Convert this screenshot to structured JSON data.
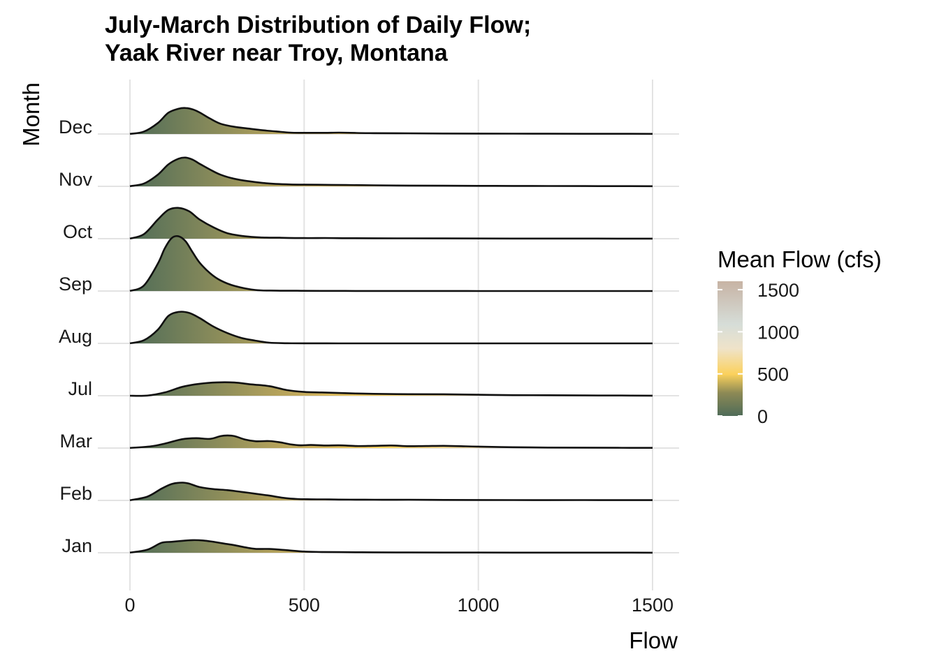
{
  "chart_data": {
    "type": "ridgeline",
    "title": [
      "July-March Distribution of Daily Flow;",
      "Yaak River near Troy, Montana"
    ],
    "xlabel": "Flow",
    "ylabel": "Month",
    "xlim": [
      0,
      1500
    ],
    "xticks": [
      "0",
      "500",
      "1000",
      "1500"
    ],
    "grid": true,
    "legend": {
      "title": "Mean Flow (cfs)",
      "position": "right",
      "ticks": [
        "0",
        "500",
        "1000",
        "1500"
      ],
      "range": [
        0,
        1600
      ]
    },
    "colors": {
      "low": "#4f6c58",
      "mid": "#a99a5a",
      "high_yellow": "#fbd15c",
      "very_high": "#e6dccb",
      "top": "#c7b3a4",
      "outline": "#111111"
    },
    "series": [
      {
        "name": "Jan",
        "x": [
          0,
          50,
          90,
          120,
          150,
          180,
          210,
          240,
          270,
          300,
          330,
          360,
          400,
          450,
          500,
          550,
          600,
          650,
          700,
          800,
          900,
          1000,
          1100,
          1200,
          1300,
          1400,
          1500
        ],
        "density": [
          0.05,
          0.9,
          2.9,
          3.2,
          3.5,
          3.7,
          3.6,
          3.2,
          2.7,
          2.2,
          1.6,
          1.15,
          1.1,
          0.75,
          0.35,
          0.23,
          0.18,
          0.15,
          0.12,
          0.09,
          0.07,
          0.06,
          0.05,
          0.05,
          0.04,
          0.04,
          0.03
        ]
      },
      {
        "name": "Feb",
        "x": [
          0,
          50,
          90,
          120,
          150,
          170,
          200,
          240,
          280,
          320,
          360,
          400,
          440,
          480,
          520,
          560,
          600,
          650,
          700,
          750,
          800,
          900,
          1000,
          1100,
          1200,
          1300,
          1400,
          1500
        ],
        "density": [
          0.05,
          1.1,
          3.4,
          4.8,
          5.2,
          4.9,
          3.9,
          3.3,
          3.0,
          2.5,
          1.95,
          1.4,
          0.75,
          0.4,
          0.33,
          0.3,
          0.25,
          0.22,
          0.2,
          0.19,
          0.2,
          0.15,
          0.12,
          0.11,
          0.09,
          0.1,
          0.08,
          0.08
        ]
      },
      {
        "name": "Mar",
        "x": [
          0,
          60,
          100,
          150,
          190,
          230,
          260,
          280,
          300,
          330,
          360,
          400,
          430,
          460,
          490,
          520,
          560,
          600,
          650,
          700,
          750,
          800,
          850,
          900,
          950,
          1000,
          1100,
          1200,
          1300,
          1400,
          1500
        ],
        "density": [
          0.05,
          0.5,
          1.3,
          2.6,
          2.9,
          2.7,
          3.5,
          3.7,
          3.5,
          2.5,
          2.0,
          2.05,
          1.7,
          1.1,
          0.8,
          0.9,
          0.75,
          0.8,
          0.6,
          0.65,
          0.75,
          0.55,
          0.6,
          0.65,
          0.55,
          0.42,
          0.25,
          0.15,
          0.12,
          0.08,
          0.06
        ]
      },
      {
        "name": "Jul",
        "x": [
          0,
          50,
          100,
          150,
          200,
          250,
          300,
          350,
          400,
          450,
          500,
          550,
          600,
          650,
          700,
          800,
          900,
          1000,
          1100,
          1200,
          1300,
          1400,
          1500
        ],
        "density": [
          0.0,
          0.05,
          0.95,
          2.6,
          3.5,
          3.9,
          3.85,
          3.3,
          2.8,
          1.65,
          1.1,
          0.95,
          0.8,
          0.65,
          0.55,
          0.45,
          0.42,
          0.28,
          0.17,
          0.14,
          0.09,
          0.06,
          0.03
        ]
      },
      {
        "name": "Aug",
        "x": [
          0,
          40,
          80,
          110,
          140,
          170,
          200,
          240,
          280,
          320,
          360,
          400,
          450,
          500,
          600,
          700,
          800,
          900,
          1000,
          1100,
          1200,
          1300,
          1400,
          1500
        ],
        "density": [
          0.02,
          0.9,
          4.0,
          8.0,
          9.2,
          8.9,
          7.4,
          4.9,
          3.0,
          1.6,
          0.8,
          0.2,
          0.05,
          0.02,
          0.01,
          0.01,
          0.01,
          0.01,
          0.01,
          0.01,
          0.01,
          0.01,
          0.01,
          0.01
        ]
      },
      {
        "name": "Sep",
        "x": [
          0,
          40,
          80,
          100,
          120,
          140,
          160,
          180,
          200,
          230,
          260,
          300,
          360,
          420,
          480,
          550,
          650,
          750,
          900,
          1000,
          1100,
          1200,
          1300,
          1400,
          1500
        ],
        "density": [
          0.02,
          1.6,
          8.0,
          12.5,
          15.5,
          16.0,
          14.5,
          11.3,
          8.3,
          5.2,
          3.1,
          1.5,
          0.3,
          0.12,
          0.08,
          0.05,
          0.03,
          0.02,
          0.02,
          0.01,
          0.01,
          0.01,
          0.01,
          0.01,
          0.01
        ]
      },
      {
        "name": "Oct",
        "x": [
          0,
          40,
          80,
          110,
          140,
          170,
          200,
          240,
          280,
          330,
          380,
          430,
          500,
          560,
          620,
          700,
          800,
          900,
          1000,
          1100,
          1200,
          1300,
          1400,
          1500
        ],
        "density": [
          0.03,
          1.3,
          5.6,
          8.4,
          9.0,
          8.0,
          5.6,
          3.3,
          1.6,
          0.7,
          0.35,
          0.28,
          0.18,
          0.2,
          0.15,
          0.12,
          0.1,
          0.08,
          0.06,
          0.05,
          0.04,
          0.04,
          0.03,
          0.03
        ]
      },
      {
        "name": "Nov",
        "x": [
          0,
          40,
          80,
          110,
          140,
          160,
          180,
          200,
          230,
          260,
          300,
          340,
          380,
          420,
          460,
          500,
          560,
          620,
          700,
          800,
          900,
          1000,
          1100,
          1200,
          1300,
          1400,
          1500
        ],
        "density": [
          0.05,
          0.8,
          3.4,
          6.4,
          8.1,
          8.4,
          7.8,
          6.6,
          4.9,
          3.4,
          2.2,
          1.5,
          1.0,
          0.7,
          0.55,
          0.5,
          0.45,
          0.38,
          0.3,
          0.22,
          0.18,
          0.15,
          0.12,
          0.1,
          0.08,
          0.06,
          0.05
        ]
      },
      {
        "name": "Dec",
        "x": [
          0,
          40,
          80,
          110,
          140,
          160,
          180,
          200,
          230,
          260,
          300,
          340,
          380,
          420,
          460,
          500,
          560,
          600,
          650,
          700,
          800,
          900,
          1000,
          1100,
          1200,
          1300,
          1400,
          1500
        ],
        "density": [
          0.03,
          0.7,
          3.2,
          6.2,
          7.4,
          7.6,
          7.2,
          6.3,
          4.5,
          3.0,
          2.1,
          1.6,
          1.1,
          0.75,
          0.4,
          0.35,
          0.35,
          0.4,
          0.3,
          0.25,
          0.2,
          0.15,
          0.12,
          0.1,
          0.08,
          0.07,
          0.06,
          0.05
        ]
      }
    ]
  }
}
